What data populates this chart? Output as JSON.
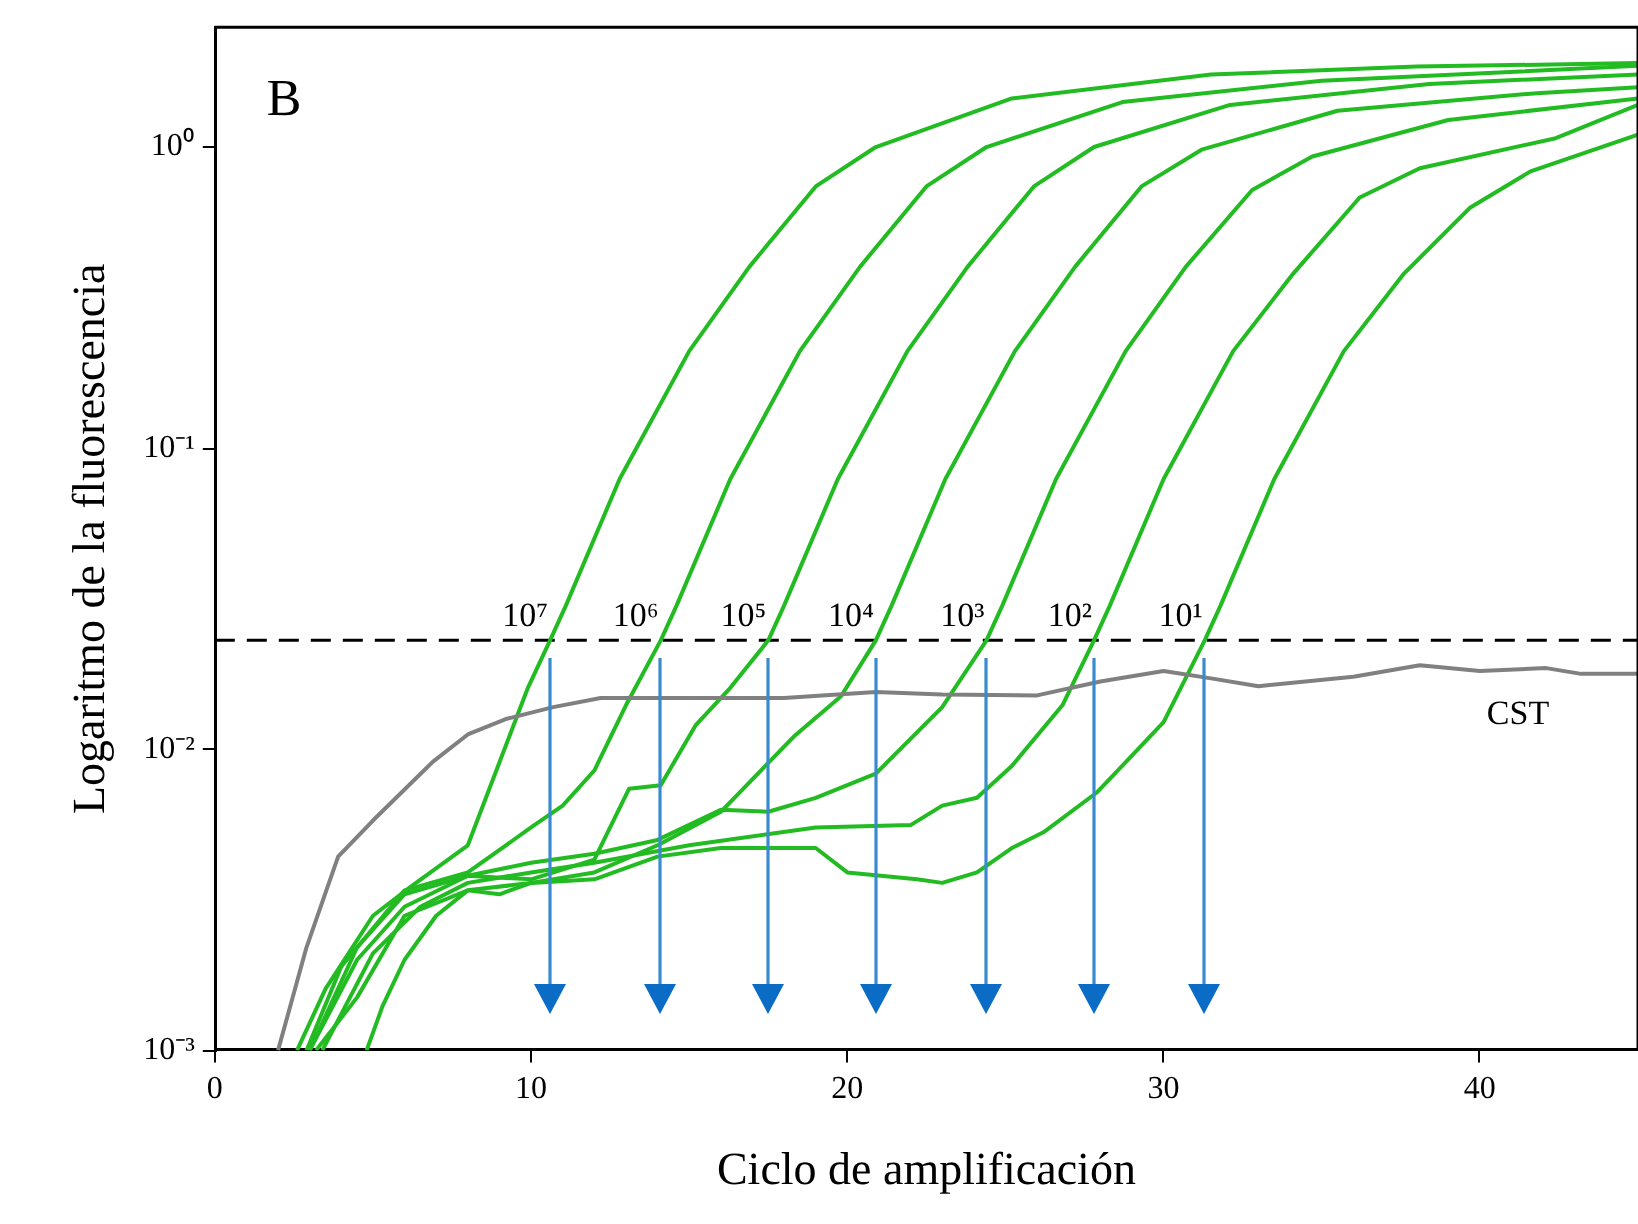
{
  "chart_data": {
    "type": "line",
    "xlabel": "Ciclo de amplificación",
    "ylabel": "Logaritmo de la fluorescencia",
    "log": "y",
    "grid": false,
    "legend": false,
    "marker": "none",
    "xlim": [
      0,
      45
    ],
    "xticks": [
      0,
      10,
      20,
      30,
      40
    ],
    "ylim": [
      0.001,
      2.5
    ],
    "yticks": [
      {
        "value": 0.001,
        "label": "10⁻³"
      },
      {
        "value": 0.01,
        "label": "10⁻²"
      },
      {
        "value": 0.1,
        "label": "10⁻¹"
      },
      {
        "value": 1,
        "label": "10⁰"
      }
    ],
    "ref_lines": [
      {
        "axis": "y",
        "value": 0.023,
        "color": "#000000",
        "line_style": "dashed"
      }
    ],
    "annotations": [
      "B",
      {
        "text": "10⁷",
        "x": 10.6,
        "y": 0.023
      },
      {
        "text": "10⁶",
        "x": 14.1,
        "y": 0.023
      },
      {
        "text": "10⁵",
        "x": 17.5,
        "y": 0.023
      },
      {
        "text": "10⁴",
        "x": 20.9,
        "y": 0.023
      },
      {
        "text": "10³",
        "x": 24.4,
        "y": 0.023
      },
      {
        "text": "10²",
        "x": 27.8,
        "y": 0.023
      },
      {
        "text": "10¹",
        "x": 31.3,
        "y": 0.023
      }
    ],
    "series": [
      {
        "name": "CST",
        "color": "#808080",
        "x": [
          2,
          2.9,
          3.9,
          5,
          6.9,
          8,
          9.2,
          10.7,
          12.2,
          14,
          16,
          18,
          20.9,
          23,
          26,
          28,
          30,
          31.5,
          33,
          36,
          38.1,
          40,
          42.1,
          43.2,
          45
        ],
        "values": [
          0.001,
          0.0022,
          0.0044,
          0.0058,
          0.0091,
          0.0112,
          0.0126,
          0.0138,
          0.0148,
          0.0148,
          0.0148,
          0.0148,
          0.0155,
          0.0152,
          0.0151,
          0.0168,
          0.0182,
          0.0172,
          0.0162,
          0.0174,
          0.019,
          0.0182,
          0.0186,
          0.0178,
          0.0178
        ]
      },
      {
        "color": "#22bb22",
        "x": [
          2.6,
          3.5,
          5,
          6.2,
          8,
          9.9,
          10.6,
          11.1,
          12.8,
          15,
          16.9,
          19,
          20.9,
          25.2,
          31.5,
          38,
          45
        ],
        "values": [
          0.001,
          0.0016,
          0.0028,
          0.0035,
          0.0048,
          0.016,
          0.023,
          0.03,
          0.079,
          0.21,
          0.4,
          0.74,
          1,
          1.45,
          1.74,
          1.85,
          1.9
        ]
      },
      {
        "color": "#22bb22",
        "x": [
          2.9,
          4,
          6,
          8,
          10,
          11,
          12,
          13,
          14.1,
          14.6,
          16.3,
          18.5,
          20.4,
          22.5,
          24.4,
          28.7,
          35,
          45
        ],
        "values": [
          0.001,
          0.0019,
          0.0034,
          0.0039,
          0.0055,
          0.0065,
          0.0085,
          0.014,
          0.023,
          0.03,
          0.079,
          0.21,
          0.4,
          0.74,
          1,
          1.41,
          1.66,
          1.86
        ]
      },
      {
        "color": "#22bb22",
        "x": [
          3,
          4.5,
          6,
          8,
          10,
          12,
          13.1,
          14.1,
          15.2,
          16.3,
          17.5,
          18,
          19.7,
          21.9,
          23.8,
          25.9,
          27.8,
          32.1,
          38.4,
          45
        ],
        "values": [
          0.001,
          0.0022,
          0.0033,
          0.0038,
          0.0037,
          0.0043,
          0.0074,
          0.0076,
          0.012,
          0.016,
          0.023,
          0.03,
          0.079,
          0.21,
          0.4,
          0.74,
          1,
          1.38,
          1.62,
          1.74
        ]
      },
      {
        "color": "#22bb22",
        "x": [
          3.2,
          4.5,
          6,
          8,
          10,
          12,
          14,
          16,
          18.3,
          19.8,
          20.9,
          21.4,
          23.1,
          25.3,
          27.2,
          29.3,
          31.2,
          35.5,
          41.8,
          45
        ],
        "values": [
          0.001,
          0.0015,
          0.0028,
          0.0034,
          0.0036,
          0.0039,
          0.0048,
          0.0062,
          0.011,
          0.015,
          0.023,
          0.03,
          0.079,
          0.21,
          0.4,
          0.74,
          0.98,
          1.32,
          1.51,
          1.58
        ]
      },
      {
        "color": "#22bb22",
        "x": [
          3,
          4.5,
          6,
          8,
          10,
          12,
          14,
          16,
          17.5,
          19,
          20.9,
          23,
          24.4,
          24.9,
          26.6,
          28.8,
          30.7,
          32.8,
          34.7,
          39,
          45
        ],
        "values": [
          0.001,
          0.002,
          0.003,
          0.0038,
          0.0042,
          0.0045,
          0.005,
          0.0063,
          0.0062,
          0.0069,
          0.0083,
          0.0138,
          0.023,
          0.03,
          0.079,
          0.21,
          0.4,
          0.72,
          0.93,
          1.23,
          1.45
        ]
      },
      {
        "color": "#22bb22",
        "x": [
          3.4,
          5,
          6.5,
          8,
          10,
          12,
          15,
          19,
          22,
          23,
          24.1,
          25.2,
          26.8,
          27.8,
          28.3,
          30,
          32.2,
          34.1,
          36.2,
          38.1,
          42.4,
          45
        ],
        "values": [
          0.001,
          0.0021,
          0.003,
          0.0036,
          0.0039,
          0.0042,
          0.0048,
          0.0055,
          0.0056,
          0.0065,
          0.0069,
          0.0088,
          0.014,
          0.023,
          0.03,
          0.079,
          0.21,
          0.38,
          0.68,
          0.85,
          1.07,
          1.38
        ]
      },
      {
        "color": "#22bb22",
        "x": [
          4.8,
          5.3,
          6,
          7,
          8,
          9,
          10,
          12,
          14,
          16,
          19,
          20,
          22.2,
          23,
          24.1,
          25.2,
          26.2,
          27.9,
          30,
          31.3,
          31.8,
          33.5,
          35.7,
          37.6,
          39.7,
          41.6,
          45
        ],
        "values": [
          0.001,
          0.0014,
          0.002,
          0.0028,
          0.0034,
          0.0033,
          0.0036,
          0.0037,
          0.0044,
          0.0047,
          0.0047,
          0.0039,
          0.0037,
          0.0036,
          0.0039,
          0.0047,
          0.0053,
          0.0072,
          0.0123,
          0.023,
          0.03,
          0.079,
          0.21,
          0.38,
          0.63,
          0.83,
          1.1
        ]
      }
    ]
  }
}
